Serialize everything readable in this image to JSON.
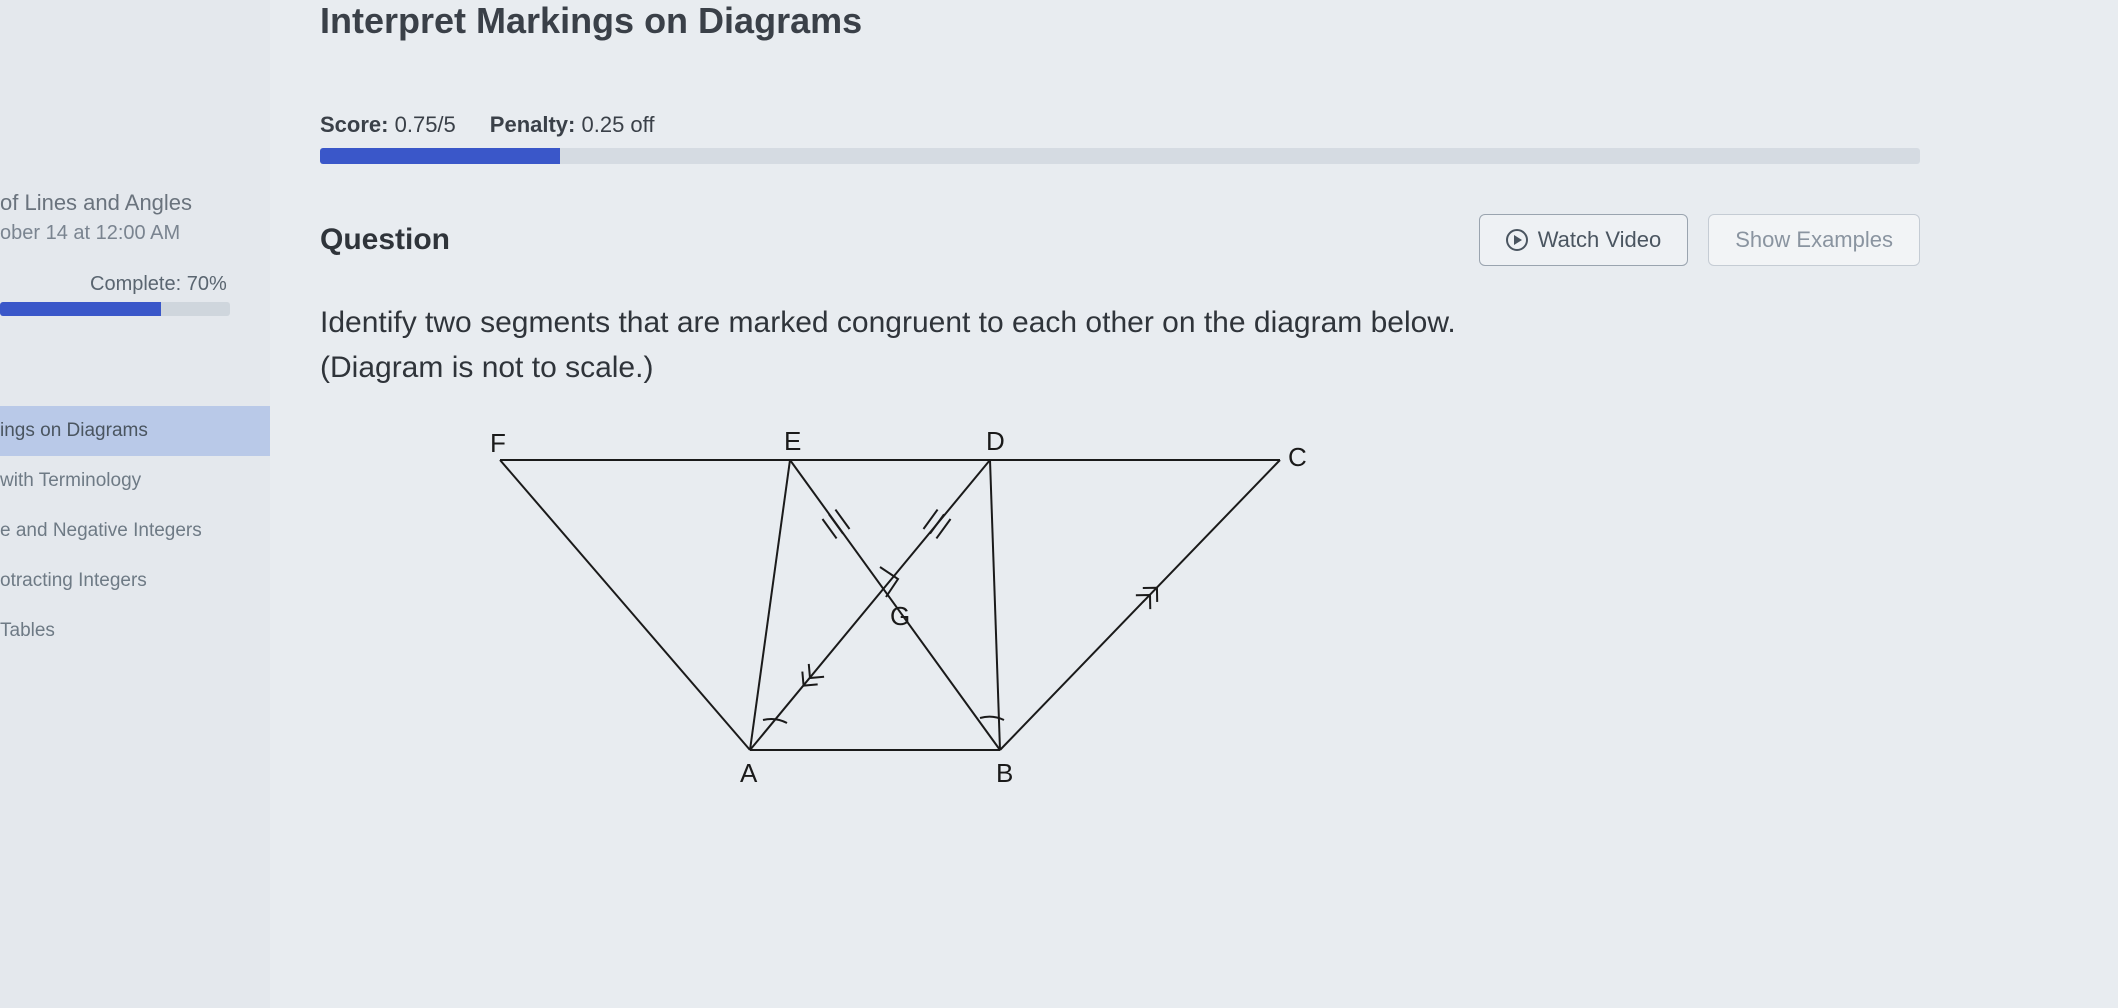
{
  "page": {
    "title": "Interpret Markings on Diagrams"
  },
  "sidebar": {
    "unit_title": "of Lines and Angles",
    "due": "ober 14 at 12:00 AM",
    "complete_label": "Complete: 70%",
    "complete_pct": 70,
    "items": [
      {
        "label": "ings on Diagrams",
        "active": true
      },
      {
        "label": "with Terminology",
        "active": false
      },
      {
        "label": "e and Negative Integers",
        "active": false
      },
      {
        "label": "otracting Integers",
        "active": false
      },
      {
        "label": "Tables",
        "active": false
      }
    ]
  },
  "score": {
    "score_label": "Score:",
    "score_value": "0.75/5",
    "penalty_label": "Penalty:",
    "penalty_value": "0.25 off",
    "progress_pct": 15
  },
  "question": {
    "heading": "Question",
    "watch_video": "Watch Video",
    "show_examples": "Show Examples",
    "prompt_line1": "Identify two segments that are marked congruent to each other on the diagram below.",
    "prompt_line2": "(Diagram is not to scale.)"
  },
  "diagram": {
    "labels": {
      "F": "F",
      "E": "E",
      "D": "D",
      "C": "C",
      "A": "A",
      "B": "B",
      "G": "G"
    }
  },
  "colors": {
    "accent": "#3a57c9",
    "bg": "#e8ecf0",
    "text": "#2f343a"
  }
}
